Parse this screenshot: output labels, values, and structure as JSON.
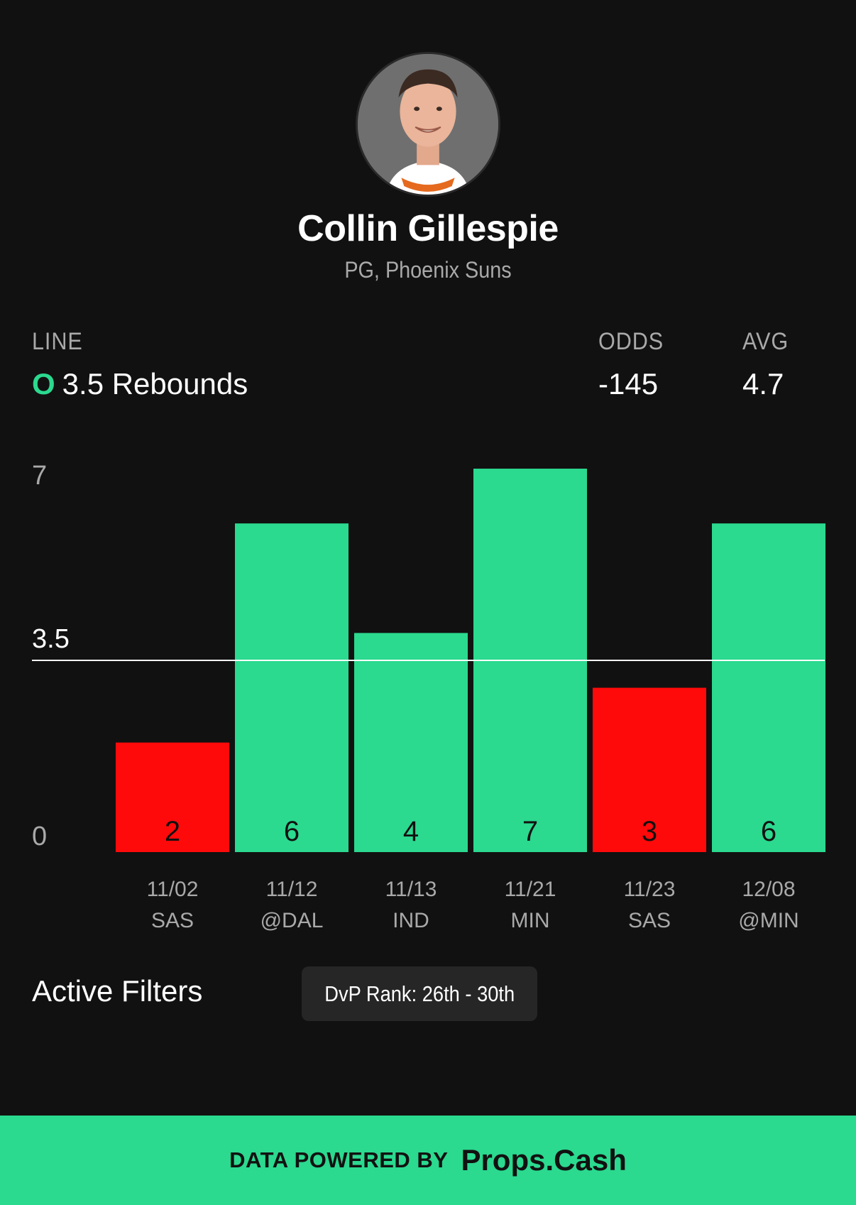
{
  "player": {
    "name": "Collin Gillespie",
    "subtitle": "PG, Phoenix Suns",
    "avatar_icon": "player-headshot"
  },
  "stats": {
    "line_label": "LINE",
    "over_under": "O",
    "line_value": "3.5 Rebounds",
    "odds_label": "ODDS",
    "odds_value": "-145",
    "avg_label": "AVG",
    "avg_value": "4.7"
  },
  "chart_data": {
    "type": "bar",
    "categories": [
      "11/02",
      "11/12",
      "11/13",
      "11/21",
      "11/23",
      "12/08"
    ],
    "opponents": [
      "SAS",
      "@DAL",
      "IND",
      "MIN",
      "SAS",
      "@MIN"
    ],
    "values": [
      2,
      6,
      4,
      7,
      3,
      6
    ],
    "line": 3.5,
    "ylim": [
      0,
      7
    ],
    "yticks": [
      "0",
      "3.5",
      "7"
    ],
    "colors": {
      "over": "#2bd98f",
      "under": "#ff0a0a",
      "line": "#ffffff"
    },
    "grid": false
  },
  "filters": {
    "title": "Active Filters",
    "chip": "DvP Rank: 26th - 30th"
  },
  "footer": {
    "powered_by": "DATA POWERED BY",
    "brand": "Props.Cash"
  }
}
